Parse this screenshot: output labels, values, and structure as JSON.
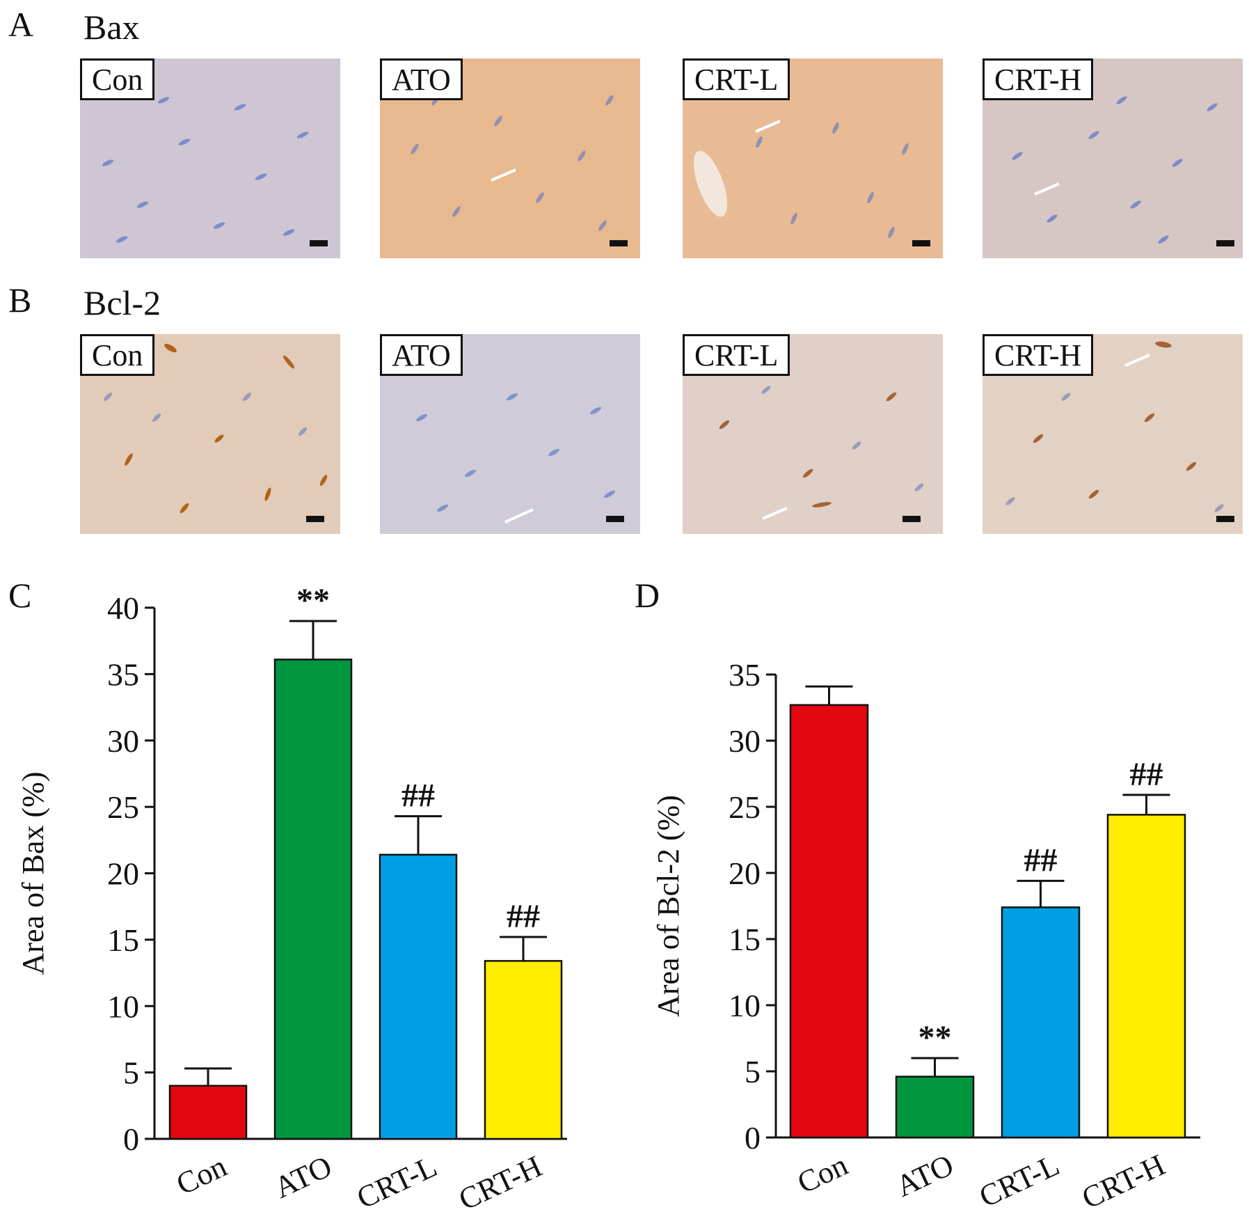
{
  "figure": {
    "row_a": {
      "letter": "A",
      "title": "Bax",
      "panels": [
        {
          "label": "Con"
        },
        {
          "label": "ATO"
        },
        {
          "label": "CRT-L"
        },
        {
          "label": "CRT-H"
        }
      ]
    },
    "row_b": {
      "letter": "B",
      "title": "Bcl-2",
      "panels": [
        {
          "label": "Con"
        },
        {
          "label": "ATO"
        },
        {
          "label": "CRT-L"
        },
        {
          "label": "CRT-H"
        }
      ]
    }
  },
  "chart_data": [
    {
      "panel_letter": "C",
      "type": "bar",
      "categories": [
        "Con",
        "ATO",
        "CRT-L",
        "CRT-H"
      ],
      "values": [
        4.0,
        36.1,
        21.4,
        13.4
      ],
      "errors": [
        1.3,
        2.9,
        2.9,
        1.8
      ],
      "significance": [
        "",
        "**",
        "##",
        "##"
      ],
      "colors": [
        "#e30613",
        "#009640",
        "#009fe3",
        "#ffed00"
      ],
      "xlabel": "",
      "ylabel": "Area of Bax (%)",
      "ylim": [
        0,
        40
      ],
      "yticks": [
        0,
        5,
        10,
        15,
        20,
        25,
        30,
        35,
        40
      ],
      "grid": false
    },
    {
      "panel_letter": "D",
      "type": "bar",
      "categories": [
        "Con",
        "ATO",
        "CRT-L",
        "CRT-H"
      ],
      "values": [
        32.7,
        4.6,
        17.4,
        24.4
      ],
      "errors": [
        1.4,
        1.4,
        2.0,
        1.5
      ],
      "significance": [
        "",
        "**",
        "##",
        "##"
      ],
      "colors": [
        "#e30613",
        "#009640",
        "#009fe3",
        "#ffed00"
      ],
      "xlabel": "",
      "ylabel": "Area of Bcl-2 (%)",
      "ylim": [
        0,
        35
      ],
      "yticks": [
        0,
        5,
        10,
        15,
        20,
        25,
        30,
        35
      ],
      "grid": false
    }
  ]
}
